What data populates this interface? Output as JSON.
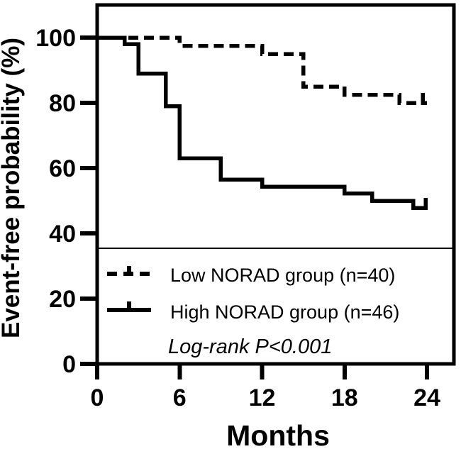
{
  "figure": {
    "background": "#ffffff",
    "ink": "#000000"
  },
  "chart_data": {
    "type": "line",
    "subtype": "kaplan-meier-step",
    "title": "",
    "xlabel": "Months",
    "ylabel": "Event-free probability (%)",
    "xlim": [
      0,
      24
    ],
    "ylim": [
      0,
      100
    ],
    "x_ticks": [
      "0",
      "6",
      "12",
      "18",
      "24"
    ],
    "x_tick_values": [
      0,
      6,
      12,
      18,
      24
    ],
    "y_ticks": [
      "0",
      "20",
      "40",
      "60",
      "80",
      "100"
    ],
    "y_tick_values": [
      0,
      20,
      40,
      60,
      80,
      100
    ],
    "grid": false,
    "legend_position": "inside-bottom-left",
    "annotation": "Log-rank P<0.001",
    "series": [
      {
        "name": "Low NORAD group (n=40)",
        "line_style": "dashed",
        "color": "#000000",
        "steps": [
          [
            0,
            100
          ],
          [
            6,
            100
          ],
          [
            6,
            97.5
          ],
          [
            12,
            97.5
          ],
          [
            12,
            95
          ],
          [
            15,
            95
          ],
          [
            15,
            85
          ],
          [
            18,
            85
          ],
          [
            18,
            82.5
          ],
          [
            22,
            82.5
          ],
          [
            22,
            80
          ],
          [
            24,
            80
          ]
        ],
        "censor_ticks": [
          [
            23.7,
            80
          ]
        ]
      },
      {
        "name": "High NORAD group (n=46)",
        "line_style": "solid",
        "color": "#000000",
        "steps": [
          [
            0,
            100
          ],
          [
            2,
            100
          ],
          [
            2,
            98
          ],
          [
            3,
            98
          ],
          [
            3,
            89
          ],
          [
            5,
            89
          ],
          [
            5,
            79
          ],
          [
            6,
            79
          ],
          [
            6,
            63
          ],
          [
            9,
            63
          ],
          [
            9,
            56.5
          ],
          [
            12,
            56.5
          ],
          [
            12,
            54.3
          ],
          [
            18,
            54.3
          ],
          [
            18,
            52.2
          ],
          [
            20,
            52.2
          ],
          [
            20,
            50
          ],
          [
            23,
            50
          ],
          [
            23,
            47.8
          ],
          [
            24,
            47.8
          ]
        ],
        "censor_ticks": [
          [
            23.9,
            47.8
          ]
        ]
      }
    ]
  }
}
